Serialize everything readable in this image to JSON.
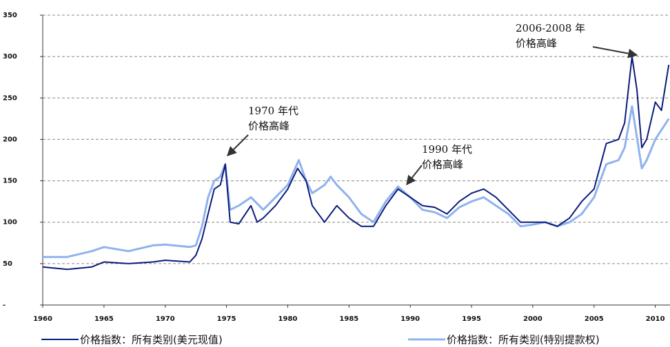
{
  "chart_data": {
    "type": "line",
    "xlim": [
      1960,
      2011.2
    ],
    "xticks": [
      1960,
      1965,
      1970,
      1975,
      1980,
      1985,
      1990,
      1995,
      2000,
      2005,
      2010
    ],
    "ylim": [
      0,
      350
    ],
    "yticks": [
      {
        "value": 0,
        "label": "-"
      },
      50,
      100,
      150,
      200,
      250,
      300,
      350
    ],
    "grid": true,
    "legend": "bottom",
    "series": [
      {
        "name": "价格指数：所有类别(美元现值)",
        "color": "#0a1a7a",
        "x": [
          1960,
          1962,
          1964,
          1965,
          1967,
          1969,
          1970,
          1972,
          1972.5,
          1973,
          1973.5,
          1974,
          1974.5,
          1974.9,
          1975.3,
          1976,
          1977,
          1977.5,
          1978,
          1979,
          1980,
          1980.8,
          1981.5,
          1982,
          1983,
          1984,
          1985,
          1986,
          1987,
          1988,
          1989,
          1990,
          1991,
          1992,
          1993,
          1994,
          1995,
          1996,
          1997,
          1998,
          1999,
          2000,
          2001,
          2002,
          2003,
          2004,
          2005,
          2006,
          2007,
          2007.5,
          2008.1,
          2008.5,
          2008.9,
          2009.3,
          2010,
          2010.5,
          2011.1
        ],
        "values": [
          46,
          43,
          46,
          52,
          50,
          52,
          54,
          52,
          60,
          80,
          110,
          140,
          145,
          170,
          100,
          98,
          120,
          100,
          105,
          120,
          140,
          165,
          150,
          120,
          100,
          120,
          105,
          95,
          95,
          120,
          140,
          130,
          120,
          118,
          110,
          125,
          135,
          140,
          130,
          115,
          100,
          100,
          100,
          95,
          105,
          125,
          140,
          195,
          200,
          220,
          300,
          260,
          190,
          200,
          245,
          235,
          290
        ]
      },
      {
        "name": "价格指数：所有类别(特别提款权)",
        "color": "#8fb2ee",
        "x": [
          1960,
          1962,
          1964,
          1965,
          1967,
          1969,
          1970,
          1972,
          1972.5,
          1973,
          1973.5,
          1974,
          1974.5,
          1974.9,
          1975.3,
          1976,
          1977,
          1978,
          1979,
          1980,
          1980.9,
          1981.5,
          1982,
          1983,
          1983.5,
          1984,
          1985,
          1986,
          1987,
          1988,
          1989,
          1990,
          1991,
          1992,
          1993,
          1994,
          1995,
          1996,
          1997,
          1998,
          1999,
          2000,
          2001,
          2002,
          2003,
          2004,
          2005,
          2006,
          2007,
          2007.5,
          2008.1,
          2008.9,
          2009.3,
          2010,
          2011.1
        ],
        "values": [
          58,
          58,
          65,
          70,
          65,
          72,
          73,
          70,
          72,
          95,
          130,
          150,
          155,
          170,
          115,
          120,
          130,
          115,
          130,
          145,
          175,
          150,
          135,
          145,
          155,
          145,
          130,
          110,
          100,
          125,
          143,
          130,
          115,
          112,
          105,
          118,
          125,
          130,
          120,
          110,
          95,
          97,
          100,
          95,
          100,
          110,
          130,
          170,
          175,
          190,
          240,
          165,
          175,
          200,
          225
        ]
      }
    ],
    "annotations": [
      {
        "lines": [
          "1970 年代",
          "价格高峰"
        ]
      },
      {
        "lines": [
          "1990 年代",
          "价格高峰"
        ]
      },
      {
        "lines": [
          "2006-2008 年",
          "价格高峰"
        ]
      }
    ]
  }
}
